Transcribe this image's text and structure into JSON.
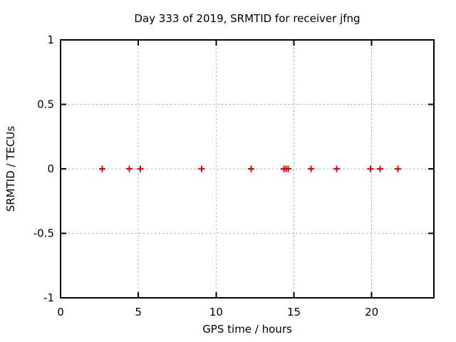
{
  "window": {
    "background": "#ffffff"
  },
  "chart_data": {
    "type": "scatter",
    "title": "Day 333 of 2019, SRMTID for receiver jfng",
    "xlabel": "GPS time / hours",
    "ylabel": "SRMTID / TECUs",
    "xlim": [
      0,
      24
    ],
    "ylim": [
      -1,
      1
    ],
    "xticks": [
      0,
      5,
      10,
      15,
      20
    ],
    "yticks": [
      1,
      0.5,
      0,
      -0.5,
      -1
    ],
    "grid": true,
    "legend_position": "none",
    "series": [
      {
        "name": "SRMTID",
        "marker": "plus",
        "color": "#e60000",
        "points": [
          [
            2.67,
            0
          ],
          [
            4.43,
            0
          ],
          [
            5.12,
            0
          ],
          [
            9.06,
            0
          ],
          [
            12.26,
            0
          ],
          [
            14.37,
            0
          ],
          [
            14.5,
            0
          ],
          [
            14.63,
            0
          ],
          [
            16.11,
            0
          ],
          [
            17.74,
            0
          ],
          [
            19.93,
            0
          ],
          [
            20.54,
            0
          ],
          [
            21.68,
            0
          ]
        ]
      }
    ],
    "colors": {
      "border": "#000000",
      "grid": "#b0b0b0",
      "text": "#000000",
      "marker": "#e60000"
    }
  }
}
